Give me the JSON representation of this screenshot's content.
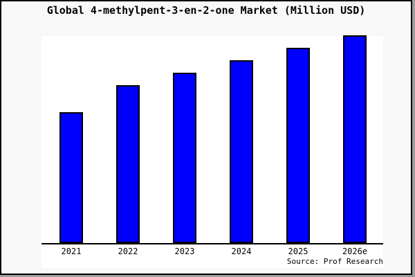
{
  "title": "Global 4-methylpent-3-en-2-one Market (Million USD)",
  "source": "Source: Prof Research",
  "colors": {
    "page_background": "#f8f8f8",
    "plot_background": "#ffffff",
    "bar_fill": "#0000ff",
    "bar_border": "#000000",
    "axis_color": "#000000",
    "text_color": "#000000",
    "outer_border": "#000000"
  },
  "chart_data": {
    "type": "bar",
    "title": "Global 4-methylpent-3-en-2-one Market (Million USD)",
    "categories": [
      "2021",
      "2022",
      "2023",
      "2024",
      "2025",
      "2026e"
    ],
    "values": [
      63,
      76,
      82,
      88,
      94,
      100
    ],
    "note": "no y-axis ticks, gridlines or data labels are shown; values are relative bar heights with tallest bar (2026e) = 100",
    "xlabel": "",
    "ylabel": "",
    "ylim": [
      0,
      100
    ],
    "grid": false,
    "legend": false,
    "bar_color": "#0000ff",
    "source": "Source: Prof Research"
  }
}
